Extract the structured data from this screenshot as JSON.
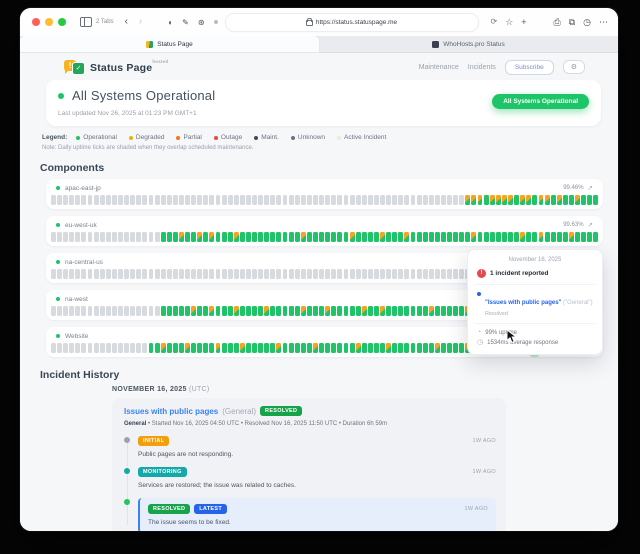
{
  "browser": {
    "tabs_label": "2 Tabs",
    "url": "https://status.statuspage.me",
    "tabs": [
      {
        "title": "Status Page"
      },
      {
        "title": "WhoHosts.pro Status"
      }
    ]
  },
  "header": {
    "brand": "Status Page",
    "brand_badge": "hosted",
    "nav": [
      "Maintenance",
      "Incidents"
    ],
    "subscribe_label": "Subscribe",
    "gear_icon": "gear"
  },
  "hero": {
    "title": "All Systems Operational",
    "last_updated": "Last updated Nov 26, 2025 at 01:23 PM GMT+1",
    "pill": "All Systems Operational",
    "status_color": "#1ec468"
  },
  "legend": {
    "label": "Legend:",
    "items": [
      {
        "label": "Operational",
        "color": "#22c55e"
      },
      {
        "label": "Degraded",
        "color": "#eab308"
      },
      {
        "label": "Partial",
        "color": "#f97316"
      },
      {
        "label": "Outage",
        "color": "#ef4444"
      },
      {
        "label": "Maint.",
        "color": "#3e4b5b"
      },
      {
        "label": "Unknown",
        "color": "#64748b"
      },
      {
        "label": "Active Incident",
        "color": "#f6e8cf"
      }
    ],
    "note": "Note: Daily uptime ticks are shaded when they overlap scheduled maintenance."
  },
  "components": {
    "title": "Components",
    "tick_colors": {
      "gray": "#d7dbe0",
      "up": "#1fc468",
      "maintenance_shaded": "#f6a41f"
    },
    "rows": [
      {
        "name": "apac-east-jp",
        "uptime": "99.46%",
        "lead_gray": 68,
        "ticks": [
          "mmmummmmummummumuumuuu"
        ]
      },
      {
        "name": "eu-west-uk",
        "uptime": "99.63%",
        "lead_gray": 18,
        "ticks": [
          "uuumuumumuuumuuuuuuuuuum",
          "uuuuuuumuuuumuuumuuuuuuu",
          "uuumuuuuuuumuumuuuumuuuu"
        ]
      },
      {
        "name": "na-central-us",
        "uptime": "",
        "lead_gray": 83,
        "ticks": [
          "uummuuu"
        ]
      },
      {
        "name": "na-west",
        "uptime": "",
        "lead_gray": 18,
        "ticks": [
          "uuuuumuumuuumuuuumuuuuum",
          "uuumuuuuumuumuuuuuuumuuu",
          "uumuuuuumuuuumuuumuuuuuu"
        ]
      },
      {
        "name": "Website",
        "uptime": "",
        "lead_gray": 16,
        "ticks": [
          "uumuuumuuuumuuumuuuuumuu",
          "uuumuuuuuumuuuumuuuuuuum",
          "uuuumuuuuuumuumhmuumuumuuu"
        ]
      }
    ]
  },
  "tooltip": {
    "date": "November 16, 2025",
    "incident_count": "1 incident reported",
    "link": "\"Issues with public pages\"",
    "link_scope": " (\"General\")",
    "link_sub": "Resolved",
    "uptime": "99% uptime",
    "response": "1534ms average response"
  },
  "history": {
    "title": "Incident History",
    "date": "NOVEMBER 16, 2025",
    "date_suffix": "(UTC)",
    "incident": {
      "title": "Issues with public pages",
      "scope": "(General)",
      "status": "RESOLVED",
      "meta_bold": "General",
      "meta": " • Started Nov 16, 2025 04:50 UTC • Resolved Nov 16, 2025 11:50 UTC • Duration 6h 59m",
      "updates": [
        {
          "badge": "INITIAL",
          "badge_class": "b-initial",
          "dot": "#9ca3af",
          "time": "1W AGO",
          "text": "Public pages are not responding.",
          "highlight": false
        },
        {
          "badge": "MONITORING",
          "badge_class": "b-monitoring",
          "dot": "#14a8a8",
          "time": "1W AGO",
          "text": "Services are restored; the issue was related to caches.",
          "highlight": false
        },
        {
          "badge": "RESOLVED",
          "badge_class": "b-resolved",
          "badge2": "LATEST",
          "badge2_class": "b-latest",
          "dot": "#22c55e",
          "time": "1W AGO",
          "text": "The issue seems to be fixed.",
          "highlight": true
        }
      ]
    }
  }
}
